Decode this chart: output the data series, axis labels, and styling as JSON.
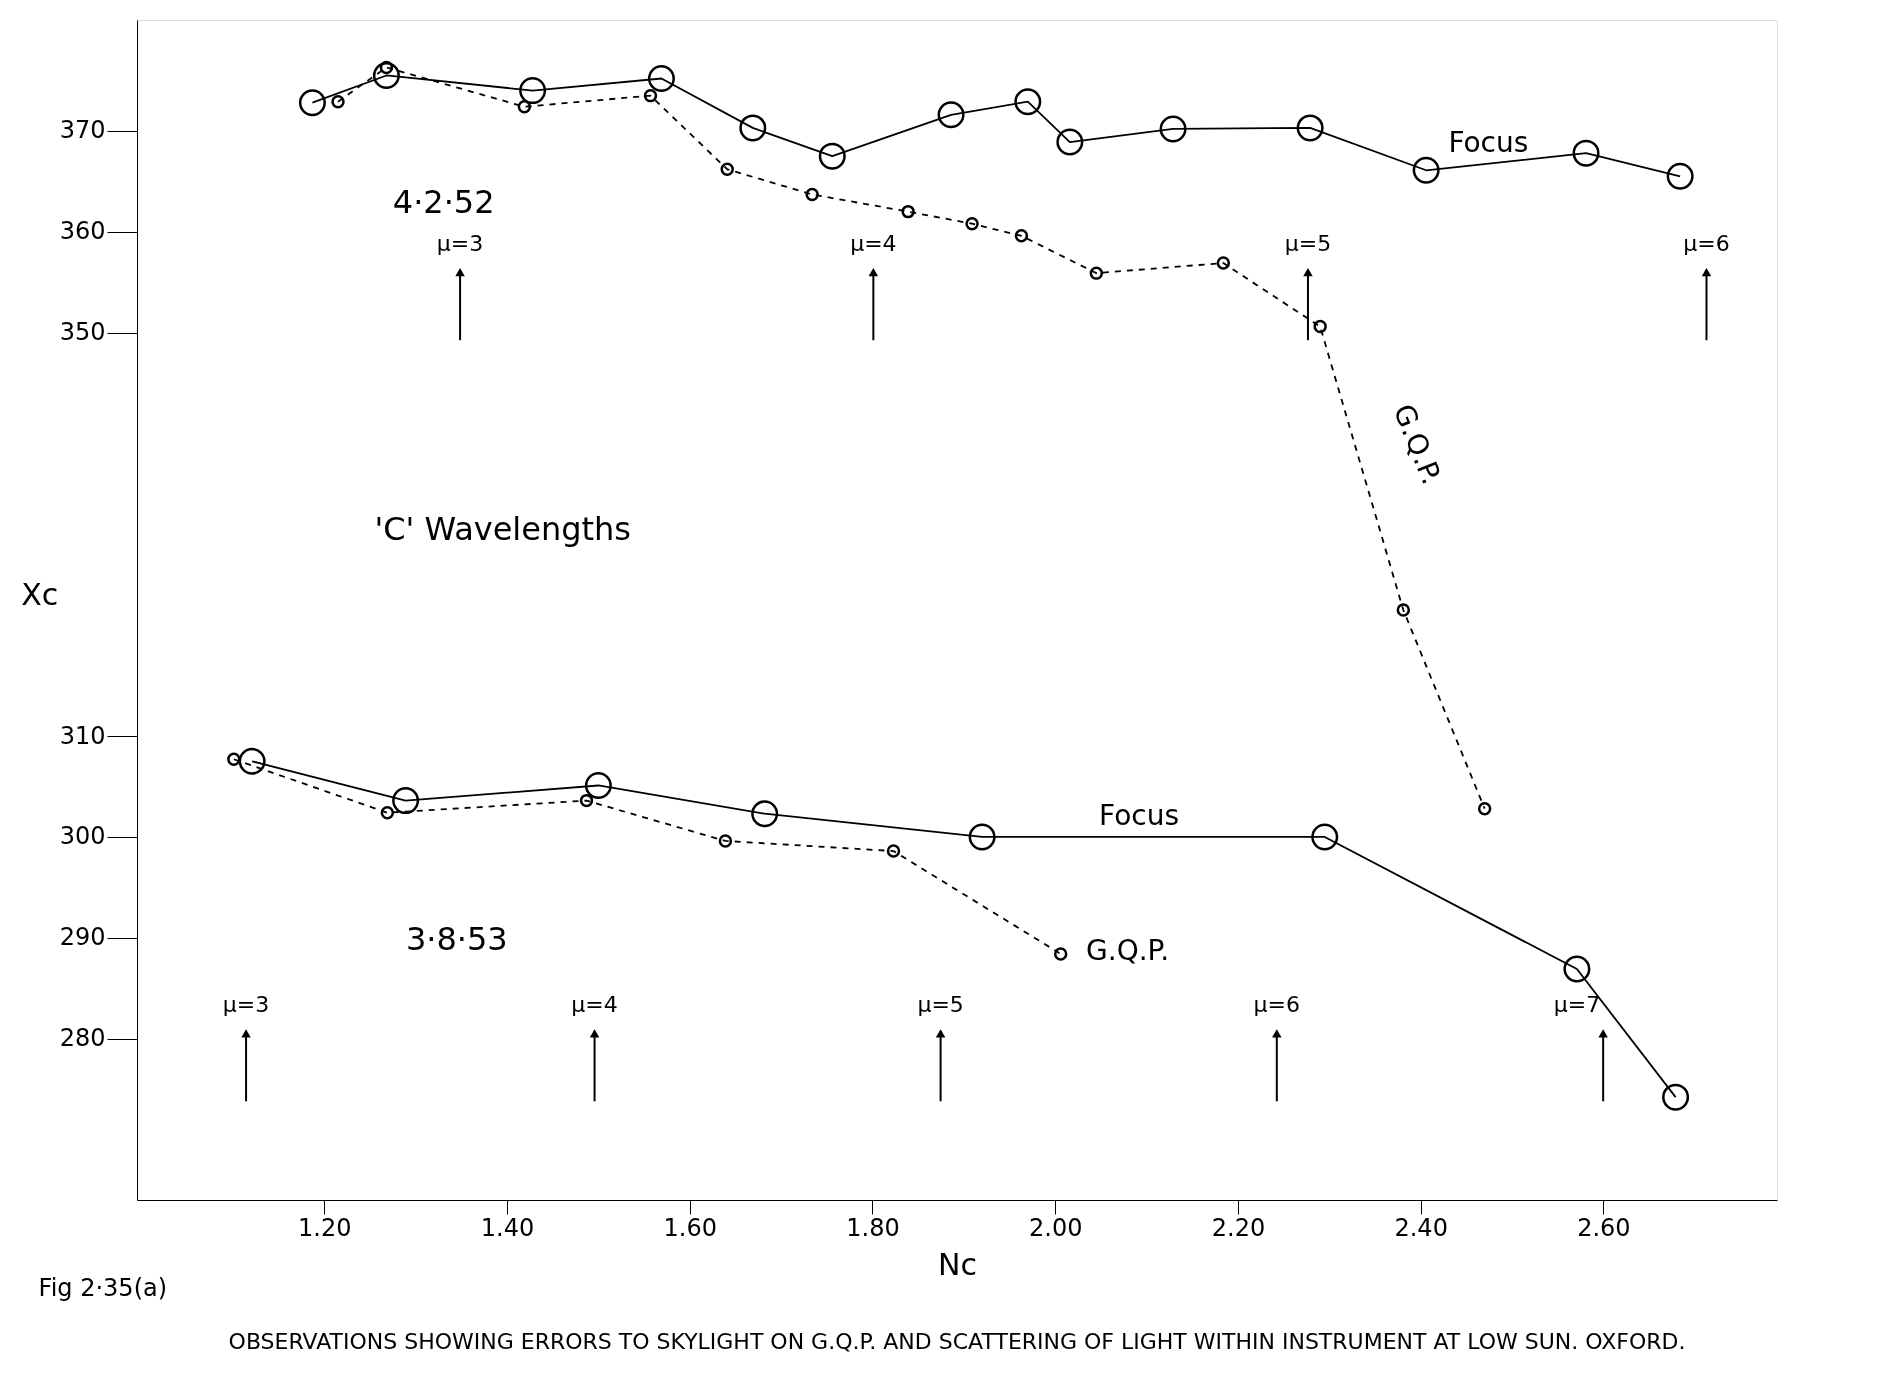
{
  "chart_data": {
    "type": "line",
    "xlabel": "Nc",
    "ylabel": "Xc",
    "xlim": [
      0.995,
      2.79
    ],
    "ylim": [
      264,
      381
    ],
    "xticks": [
      {
        "value": 1.2,
        "label": "1.20"
      },
      {
        "value": 1.4,
        "label": "1.40"
      },
      {
        "value": 1.6,
        "label": "1.60"
      },
      {
        "value": 1.8,
        "label": "1.80"
      },
      {
        "value": 2.0,
        "label": "2.00"
      },
      {
        "value": 2.2,
        "label": "2.20"
      },
      {
        "value": 2.4,
        "label": "2.40"
      },
      {
        "value": 2.6,
        "label": "2.60"
      }
    ],
    "yticks": [
      280,
      290,
      300,
      310,
      350,
      360,
      370
    ],
    "grid": false,
    "marker": "circle",
    "series": [
      {
        "color": "#000000",
        "line_style": "solid",
        "x": [
          1.187,
          1.268,
          1.428,
          1.569,
          1.669,
          1.756,
          1.886,
          1.97,
          2.016,
          2.129,
          2.279,
          2.406,
          2.581,
          2.684
        ],
        "values": [
          372.8,
          375.5,
          374.0,
          375.2,
          370.3,
          367.5,
          371.6,
          372.9,
          368.9,
          370.2,
          370.3,
          366.1,
          367.8,
          365.5
        ]
      },
      {
        "color": "#000000",
        "line_style": "dashed",
        "x": [
          1.215,
          1.268,
          1.419,
          1.557,
          1.641,
          1.734,
          1.839,
          1.909,
          1.963,
          2.045,
          2.184,
          2.29,
          2.381,
          2.47
        ],
        "values": [
          372.9,
          376.3,
          372.4,
          373.5,
          366.2,
          363.7,
          362.0,
          360.8,
          359.6,
          355.9,
          356.9,
          350.6,
          322.5,
          302.8
        ]
      },
      {
        "color": "#000000",
        "line_style": "solid",
        "x": [
          1.121,
          1.289,
          1.5,
          1.682,
          1.92,
          2.295,
          2.571,
          2.679
        ],
        "values": [
          307.5,
          303.6,
          305.1,
          302.3,
          300.0,
          300.0,
          286.9,
          274.2
        ]
      },
      {
        "color": "#000000",
        "line_style": "dashed",
        "x": [
          1.101,
          1.269,
          1.487,
          1.639,
          1.823,
          2.006
        ],
        "values": [
          307.7,
          302.4,
          303.6,
          299.6,
          298.6,
          288.4
        ]
      }
    ],
    "annotations": [
      "μ=3",
      "μ=4",
      "μ=5",
      "μ=6",
      "μ=3",
      "μ=4",
      "μ=5",
      "μ=6",
      "μ=7",
      "4·2·52",
      "'C' Wavelengths",
      "3·8·53",
      "Focus",
      "G.Q.P.",
      "Focus",
      "G.Q.P.",
      "Fig 2·35(a)",
      "OBSERVATIONS SHOWING ERRORS TO SKYLIGHT ON G.Q.P. AND SCATTERING OF LIGHT WITHIN INSTRUMENT AT LOW SUN. OXFORD."
    ]
  }
}
